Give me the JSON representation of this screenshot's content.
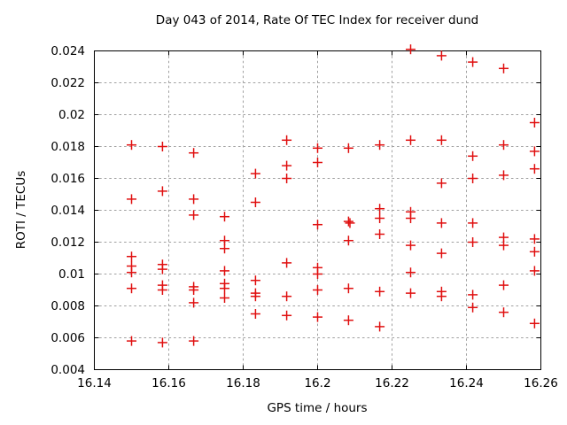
{
  "chart_data": {
    "type": "scatter",
    "title": "Day 043 of 2014, Rate Of TEC Index for receiver dund",
    "xlabel": "GPS time / hours",
    "ylabel": "ROTI / TECUs",
    "xlim": [
      16.14,
      16.26
    ],
    "ylim": [
      0.004,
      0.024
    ],
    "xtick_values": [
      16.14,
      16.16,
      16.18,
      16.2,
      16.22,
      16.24,
      16.26
    ],
    "xtick_labels": [
      "16.14",
      "16.16",
      "16.18",
      "16.2",
      "16.22",
      "16.24",
      "16.26"
    ],
    "ytick_values": [
      0.004,
      0.006,
      0.008,
      0.01,
      0.012,
      0.014,
      0.016,
      0.018,
      0.02,
      0.022,
      0.024
    ],
    "ytick_labels": [
      "0.004",
      "0.006",
      "0.008",
      "0.01",
      "0.012",
      "0.014",
      "0.016",
      "0.018",
      "0.02",
      "0.022",
      "0.024"
    ],
    "grid": true,
    "grid_color": "#a0a0a0",
    "border_color": "#000000",
    "background": "#ffffff",
    "legend": "none",
    "marker": "plus",
    "marker_color": "#e01010",
    "marker_size": 11,
    "series": [
      {
        "name": "ROTI",
        "points": [
          [
            16.15,
            0.0181
          ],
          [
            16.15,
            0.0147
          ],
          [
            16.15,
            0.0111
          ],
          [
            16.15,
            0.0105
          ],
          [
            16.15,
            0.0101
          ],
          [
            16.15,
            0.0091
          ],
          [
            16.15,
            0.0058
          ],
          [
            16.1583,
            0.018
          ],
          [
            16.1583,
            0.0152
          ],
          [
            16.1583,
            0.0106
          ],
          [
            16.1583,
            0.0103
          ],
          [
            16.1583,
            0.0093
          ],
          [
            16.1583,
            0.009
          ],
          [
            16.1583,
            0.0057
          ],
          [
            16.1667,
            0.0176
          ],
          [
            16.1667,
            0.0147
          ],
          [
            16.1667,
            0.0137
          ],
          [
            16.1667,
            0.0092
          ],
          [
            16.1667,
            0.009
          ],
          [
            16.1667,
            0.0082
          ],
          [
            16.1667,
            0.0058
          ],
          [
            16.175,
            0.0136
          ],
          [
            16.175,
            0.0121
          ],
          [
            16.175,
            0.0116
          ],
          [
            16.175,
            0.0102
          ],
          [
            16.175,
            0.0094
          ],
          [
            16.175,
            0.0091
          ],
          [
            16.175,
            0.0085
          ],
          [
            16.1833,
            0.0163
          ],
          [
            16.1833,
            0.0145
          ],
          [
            16.1833,
            0.0096
          ],
          [
            16.1833,
            0.0088
          ],
          [
            16.1833,
            0.0086
          ],
          [
            16.1833,
            0.0075
          ],
          [
            16.1917,
            0.0184
          ],
          [
            16.1917,
            0.0168
          ],
          [
            16.1917,
            0.016
          ],
          [
            16.1917,
            0.0107
          ],
          [
            16.1917,
            0.0086
          ],
          [
            16.1917,
            0.0074
          ],
          [
            16.2,
            0.0179
          ],
          [
            16.2,
            0.017
          ],
          [
            16.2,
            0.0131
          ],
          [
            16.2,
            0.0104
          ],
          [
            16.2,
            0.01
          ],
          [
            16.2,
            0.009
          ],
          [
            16.2,
            0.0073
          ],
          [
            16.2083,
            0.0179
          ],
          [
            16.2083,
            0.0133
          ],
          [
            16.2087,
            0.0132
          ],
          [
            16.2083,
            0.0121
          ],
          [
            16.2083,
            0.0091
          ],
          [
            16.2083,
            0.0071
          ],
          [
            16.2167,
            0.0181
          ],
          [
            16.2167,
            0.0141
          ],
          [
            16.2167,
            0.0135
          ],
          [
            16.2167,
            0.0125
          ],
          [
            16.2167,
            0.0089
          ],
          [
            16.2167,
            0.0067
          ],
          [
            16.225,
            0.0241
          ],
          [
            16.225,
            0.0184
          ],
          [
            16.225,
            0.0139
          ],
          [
            16.225,
            0.0135
          ],
          [
            16.225,
            0.0118
          ],
          [
            16.225,
            0.0101
          ],
          [
            16.225,
            0.0088
          ],
          [
            16.2333,
            0.0237
          ],
          [
            16.2333,
            0.0184
          ],
          [
            16.2333,
            0.0157
          ],
          [
            16.2333,
            0.0132
          ],
          [
            16.2333,
            0.0113
          ],
          [
            16.2333,
            0.0089
          ],
          [
            16.2333,
            0.0086
          ],
          [
            16.2417,
            0.0233
          ],
          [
            16.2417,
            0.0174
          ],
          [
            16.2417,
            0.016
          ],
          [
            16.2417,
            0.0132
          ],
          [
            16.2417,
            0.012
          ],
          [
            16.2417,
            0.0087
          ],
          [
            16.2417,
            0.0079
          ],
          [
            16.25,
            0.0229
          ],
          [
            16.25,
            0.0181
          ],
          [
            16.25,
            0.0162
          ],
          [
            16.25,
            0.0123
          ],
          [
            16.25,
            0.0118
          ],
          [
            16.25,
            0.0093
          ],
          [
            16.25,
            0.0076
          ],
          [
            16.2583,
            0.0195
          ],
          [
            16.2583,
            0.0177
          ],
          [
            16.2583,
            0.0166
          ],
          [
            16.2583,
            0.0122
          ],
          [
            16.2583,
            0.0114
          ],
          [
            16.2583,
            0.0102
          ],
          [
            16.2583,
            0.0069
          ]
        ]
      }
    ]
  }
}
